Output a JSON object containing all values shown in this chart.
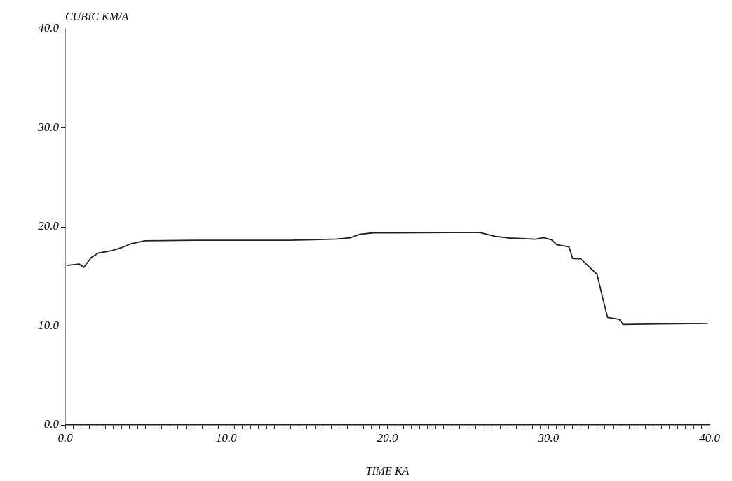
{
  "chart_data": {
    "type": "line",
    "ylabel": "CUBIC KM/A",
    "xlabel": "TIME KA",
    "x": [
      0.09,
      0.87,
      1.15,
      1.61,
      2.05,
      2.92,
      3.5,
      4.08,
      4.95,
      8.14,
      13.93,
      15.4,
      16.84,
      17.7,
      18.28,
      19.15,
      20.3,
      25.7,
      26.7,
      27.6,
      29.2,
      29.7,
      30.2,
      30.5,
      31.28,
      31.5,
      32.0,
      33.02,
      33.38,
      33.67,
      34.4,
      34.62,
      36.87,
      39.9
    ],
    "series": [
      {
        "color": "#222222",
        "values": [
          16.1,
          16.25,
          15.9,
          16.9,
          17.35,
          17.6,
          17.9,
          18.3,
          18.6,
          18.65,
          18.65,
          18.7,
          18.77,
          18.9,
          19.25,
          19.4,
          19.4,
          19.45,
          19.03,
          18.87,
          18.75,
          18.92,
          18.68,
          18.2,
          17.97,
          16.8,
          16.78,
          15.2,
          12.74,
          10.86,
          10.67,
          10.15,
          10.2,
          10.25
        ]
      }
    ],
    "marker": "none",
    "line_style": "solid",
    "xlim": [
      0,
      40
    ],
    "ylim": [
      0,
      40
    ],
    "yticks": [
      {
        "value": 0,
        "label": "0.0"
      },
      {
        "value": 10,
        "label": "10.0"
      },
      {
        "value": 20,
        "label": "20.0"
      },
      {
        "value": 30,
        "label": "30.0"
      },
      {
        "value": 40,
        "label": "40.0"
      }
    ],
    "xticks": [
      {
        "value": 0,
        "label": "0.0"
      },
      {
        "value": 0.5,
        "label": null
      },
      {
        "value": 1,
        "label": null
      },
      {
        "value": 1.5,
        "label": null
      },
      {
        "value": 2,
        "label": null
      },
      {
        "value": 2.5,
        "label": null
      },
      {
        "value": 3,
        "label": null
      },
      {
        "value": 3.5,
        "label": null
      },
      {
        "value": 4,
        "label": null
      },
      {
        "value": 4.5,
        "label": null
      },
      {
        "value": 5,
        "label": null
      },
      {
        "value": 5.5,
        "label": null
      },
      {
        "value": 6,
        "label": null
      },
      {
        "value": 6.5,
        "label": null
      },
      {
        "value": 7,
        "label": null
      },
      {
        "value": 7.5,
        "label": null
      },
      {
        "value": 8,
        "label": null
      },
      {
        "value": 8.5,
        "label": null
      },
      {
        "value": 9,
        "label": null
      },
      {
        "value": 9.5,
        "label": null
      },
      {
        "value": 10,
        "label": "10.0"
      },
      {
        "value": 10.5,
        "label": null
      },
      {
        "value": 11,
        "label": null
      },
      {
        "value": 11.5,
        "label": null
      },
      {
        "value": 12,
        "label": null
      },
      {
        "value": 12.5,
        "label": null
      },
      {
        "value": 13,
        "label": null
      },
      {
        "value": 13.5,
        "label": null
      },
      {
        "value": 14,
        "label": null
      },
      {
        "value": 14.5,
        "label": null
      },
      {
        "value": 15,
        "label": null
      },
      {
        "value": 15.5,
        "label": null
      },
      {
        "value": 16,
        "label": null
      },
      {
        "value": 16.5,
        "label": null
      },
      {
        "value": 17,
        "label": null
      },
      {
        "value": 17.5,
        "label": null
      },
      {
        "value": 18,
        "label": null
      },
      {
        "value": 18.5,
        "label": null
      },
      {
        "value": 19,
        "label": null
      },
      {
        "value": 19.5,
        "label": null
      },
      {
        "value": 20,
        "label": "20.0"
      },
      {
        "value": 20.5,
        "label": null
      },
      {
        "value": 21,
        "label": null
      },
      {
        "value": 21.5,
        "label": null
      },
      {
        "value": 22,
        "label": null
      },
      {
        "value": 22.5,
        "label": null
      },
      {
        "value": 23,
        "label": null
      },
      {
        "value": 23.5,
        "label": null
      },
      {
        "value": 24,
        "label": null
      },
      {
        "value": 24.5,
        "label": null
      },
      {
        "value": 25,
        "label": null
      },
      {
        "value": 25.5,
        "label": null
      },
      {
        "value": 26,
        "label": null
      },
      {
        "value": 26.5,
        "label": null
      },
      {
        "value": 27,
        "label": null
      },
      {
        "value": 27.5,
        "label": null
      },
      {
        "value": 28,
        "label": null
      },
      {
        "value": 28.5,
        "label": null
      },
      {
        "value": 29,
        "label": null
      },
      {
        "value": 29.5,
        "label": null
      },
      {
        "value": 30,
        "label": "30.0"
      },
      {
        "value": 30.5,
        "label": null
      },
      {
        "value": 31,
        "label": null
      },
      {
        "value": 31.5,
        "label": null
      },
      {
        "value": 32,
        "label": null
      },
      {
        "value": 32.5,
        "label": null
      },
      {
        "value": 33,
        "label": null
      },
      {
        "value": 33.5,
        "label": null
      },
      {
        "value": 34,
        "label": null
      },
      {
        "value": 34.5,
        "label": null
      },
      {
        "value": 35,
        "label": null
      },
      {
        "value": 35.5,
        "label": null
      },
      {
        "value": 36,
        "label": null
      },
      {
        "value": 36.5,
        "label": null
      },
      {
        "value": 37,
        "label": null
      },
      {
        "value": 37.5,
        "label": null
      },
      {
        "value": 38,
        "label": null
      },
      {
        "value": 38.5,
        "label": null
      },
      {
        "value": 39,
        "label": null
      },
      {
        "value": 39.5,
        "label": null
      },
      {
        "value": 40,
        "label": "40.0"
      }
    ]
  }
}
